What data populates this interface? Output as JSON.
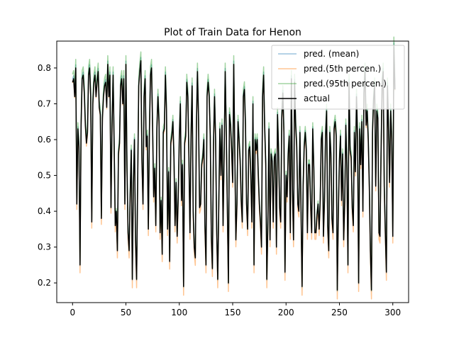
{
  "chart_data": {
    "type": "line",
    "title": "Plot of Train Data for Henon",
    "xlabel": "",
    "ylabel": "",
    "xlim": [
      -14.8,
      314.8
    ],
    "ylim": [
      0.145,
      0.875
    ],
    "xticks": [
      0,
      50,
      100,
      150,
      200,
      250,
      300
    ],
    "yticks": [
      0.2,
      0.3,
      0.4,
      0.5,
      0.6,
      0.7,
      0.8
    ],
    "grid": false,
    "legend_position": "top-right",
    "actual": [
      0.76,
      0.77,
      0.72,
      0.8,
      0.42,
      0.63,
      0.58,
      0.25,
      0.64,
      0.77,
      0.78,
      0.73,
      0.64,
      0.59,
      0.62,
      0.78,
      0.8,
      0.72,
      0.37,
      0.7,
      0.76,
      0.78,
      0.72,
      0.76,
      0.79,
      0.69,
      0.67,
      0.38,
      0.66,
      0.72,
      0.75,
      0.76,
      0.69,
      0.81,
      0.72,
      0.78,
      0.41,
      0.64,
      0.78,
      0.58,
      0.36,
      0.4,
      0.29,
      0.56,
      0.59,
      0.75,
      0.77,
      0.7,
      0.77,
      0.42,
      0.81,
      0.52,
      0.34,
      0.29,
      0.45,
      0.57,
      0.21,
      0.48,
      0.6,
      0.32,
      0.21,
      0.48,
      0.75,
      0.79,
      0.82,
      0.54,
      0.42,
      0.72,
      0.77,
      0.58,
      0.61,
      0.35,
      0.62,
      0.78,
      0.8,
      0.63,
      0.44,
      0.52,
      0.36,
      0.63,
      0.72,
      0.65,
      0.34,
      0.43,
      0.28,
      0.62,
      0.63,
      0.78,
      0.68,
      0.35,
      0.51,
      0.26,
      0.59,
      0.61,
      0.65,
      0.55,
      0.36,
      0.48,
      0.33,
      0.44,
      0.6,
      0.7,
      0.43,
      0.53,
      0.19,
      0.59,
      0.61,
      0.76,
      0.72,
      0.55,
      0.34,
      0.61,
      0.75,
      0.4,
      0.3,
      0.27,
      0.63,
      0.79,
      0.66,
      0.41,
      0.42,
      0.53,
      0.55,
      0.6,
      0.36,
      0.25,
      0.72,
      0.76,
      0.72,
      0.61,
      0.33,
      0.24,
      0.58,
      0.72,
      0.6,
      0.35,
      0.21,
      0.42,
      0.63,
      0.5,
      0.64,
      0.36,
      0.56,
      0.79,
      0.62,
      0.41,
      0.2,
      0.67,
      0.64,
      0.57,
      0.48,
      0.81,
      0.56,
      0.32,
      0.42,
      0.65,
      0.6,
      0.54,
      0.43,
      0.37,
      0.72,
      0.74,
      0.64,
      0.42,
      0.35,
      0.57,
      0.58,
      0.5,
      0.37,
      0.7,
      0.25,
      0.6,
      0.57,
      0.6,
      0.5,
      0.42,
      0.37,
      0.3,
      0.72,
      0.78,
      0.63,
      0.53,
      0.21,
      0.37,
      0.63,
      0.32,
      0.56,
      0.54,
      0.37,
      0.55,
      0.56,
      0.3,
      0.67,
      0.57,
      0.41,
      0.37,
      0.66,
      0.73,
      0.62,
      0.23,
      0.5,
      0.44,
      0.56,
      0.61,
      0.34,
      0.77,
      0.46,
      0.32,
      0.76,
      0.64,
      0.58,
      0.42,
      0.4,
      0.62,
      0.41,
      0.19,
      0.47,
      0.58,
      0.62,
      0.57,
      0.34,
      0.53,
      0.53,
      0.42,
      0.34,
      0.63,
      0.52,
      0.34,
      0.34,
      0.39,
      0.42,
      0.35,
      0.43,
      0.6,
      0.62,
      0.33,
      0.43,
      0.61,
      0.68,
      0.36,
      0.29,
      0.62,
      0.56,
      0.38,
      0.34,
      0.63,
      0.65,
      0.61,
      0.18,
      0.4,
      0.54,
      0.61,
      0.43,
      0.56,
      0.32,
      0.43,
      0.64,
      0.52,
      0.25,
      0.76,
      0.57,
      0.55,
      0.41,
      0.36,
      0.62,
      0.51,
      0.72,
      0.6,
      0.2,
      0.63,
      0.53,
      0.65,
      0.4,
      0.73,
      0.79,
      0.64,
      0.68,
      0.6,
      0.47,
      0.29,
      0.18,
      0.62,
      0.71,
      0.75,
      0.47,
      0.68,
      0.66,
      0.34,
      0.33,
      0.56,
      0.75,
      0.79,
      0.47,
      0.34,
      0.23,
      0.75,
      0.63,
      0.48,
      0.68,
      0.6,
      0.33,
      0.86,
      0.74
    ],
    "series": [
      {
        "name": "pred. (mean)",
        "color": "#1f77b4",
        "offset": 0.003,
        "scale": 0.02
      },
      {
        "name": "pred.(5th percen.)",
        "color": "#ff7f0e",
        "offset": -0.012,
        "scale": 0.04
      },
      {
        "name": "pred.(95th percen.)",
        "color": "#2ca02c",
        "offset": 0.012,
        "scale": 0.04
      },
      {
        "name": "actual",
        "color": "#000000"
      }
    ]
  }
}
